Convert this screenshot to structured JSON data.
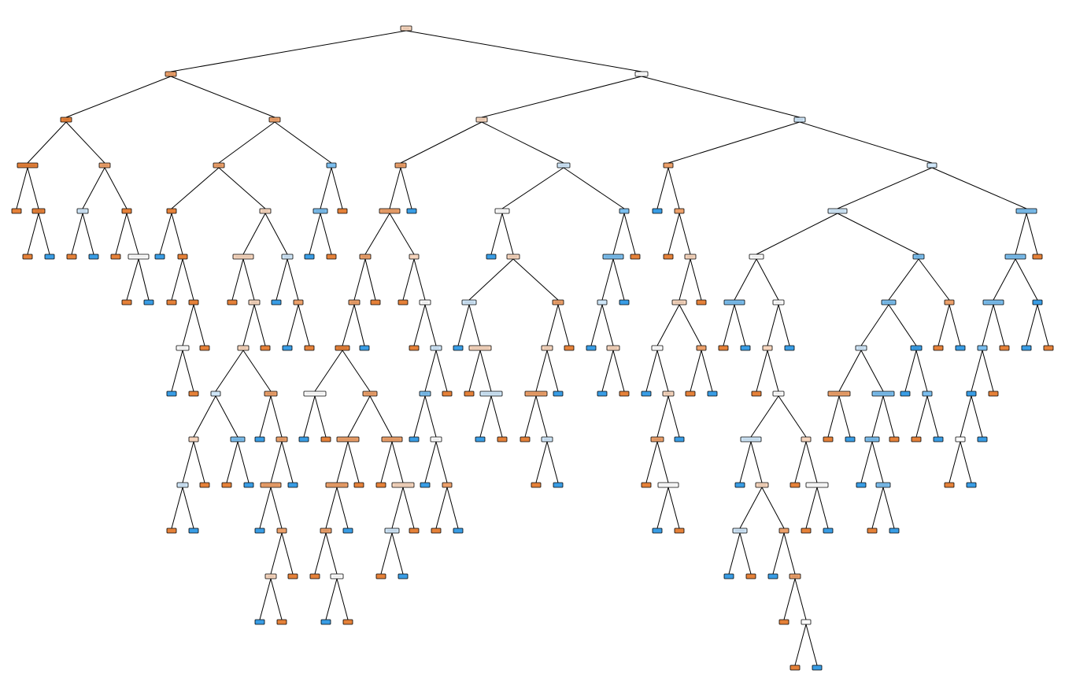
{
  "diagram": {
    "type": "decision-tree",
    "class_colors": {
      "class_0_dark": "#e58139",
      "class_0_mid": "#eca06a",
      "class_0_light": "#f6d5bd",
      "neutral": "#ffffff",
      "class_1_light": "#cfe6f8",
      "class_1_mid": "#7bbeee",
      "class_1_dark": "#399de5"
    },
    "node_text_legible": false
  }
}
